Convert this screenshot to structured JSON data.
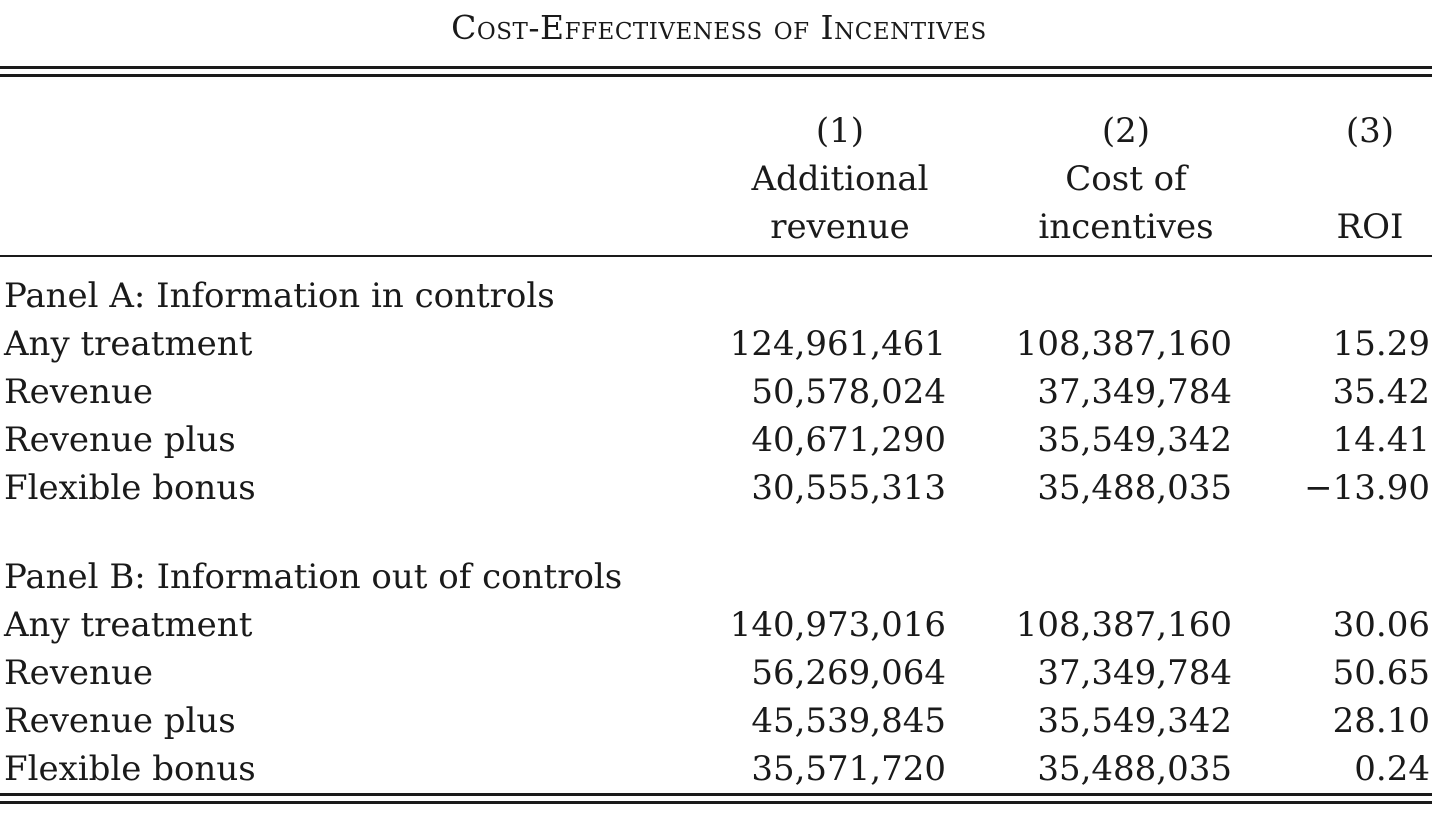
{
  "title": "Cost-Effectiveness of Incentives",
  "columns": [
    {
      "number": "(1)",
      "line1": "Additional",
      "line2": "revenue"
    },
    {
      "number": "(2)",
      "line1": "Cost of",
      "line2": "incentives"
    },
    {
      "number": "(3)",
      "line1": "",
      "line2": "ROI"
    }
  ],
  "panels": [
    {
      "heading": "Panel A: Information in controls",
      "rows": [
        {
          "label": "Any treatment",
          "c1": "124,961,461",
          "c2": "108,387,160",
          "c3": "15.29"
        },
        {
          "label": "Revenue",
          "c1": "50,578,024",
          "c2": "37,349,784",
          "c3": "35.42"
        },
        {
          "label": "Revenue plus",
          "c1": "40,671,290",
          "c2": "35,549,342",
          "c3": "14.41"
        },
        {
          "label": "Flexible bonus",
          "c1": "30,555,313",
          "c2": "35,488,035",
          "c3": "−13.90"
        }
      ]
    },
    {
      "heading": "Panel B: Information out of controls",
      "rows": [
        {
          "label": "Any treatment",
          "c1": "140,973,016",
          "c2": "108,387,160",
          "c3": "30.06"
        },
        {
          "label": "Revenue",
          "c1": "56,269,064",
          "c2": "37,349,784",
          "c3": "50.65"
        },
        {
          "label": "Revenue plus",
          "c1": "45,539,845",
          "c2": "35,549,342",
          "c3": "28.10"
        },
        {
          "label": "Flexible bonus",
          "c1": "35,571,720",
          "c2": "35,488,035",
          "c3": "0.24"
        }
      ]
    }
  ]
}
